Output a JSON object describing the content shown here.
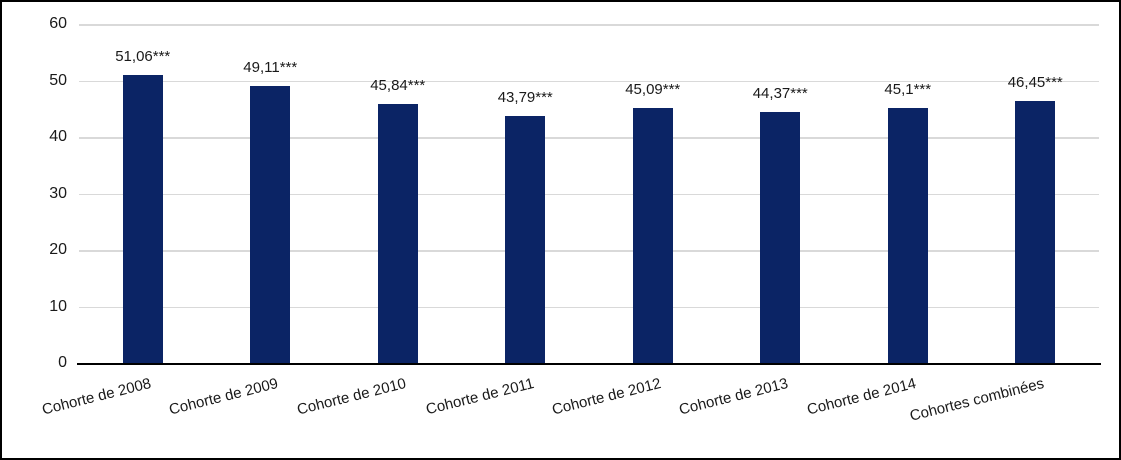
{
  "chart_data": {
    "type": "bar",
    "title": "",
    "xlabel": "",
    "ylabel": "",
    "categories": [
      "Cohorte de 2008",
      "Cohorte de 2009",
      "Cohorte de 2010",
      "Cohorte de 2011",
      "Cohorte de 2012",
      "Cohorte de 2013",
      "Cohorte de 2014",
      "Cohortes combinées"
    ],
    "values": [
      51.06,
      49.11,
      45.84,
      43.79,
      45.09,
      44.37,
      45.1,
      46.45
    ],
    "data_labels": [
      "51,06***",
      "49,11***",
      "45,84***",
      "43,79***",
      "45,09***",
      "44,37***",
      "45,1***",
      "46,45***"
    ],
    "ylim": [
      0,
      60
    ],
    "yticks": [
      0,
      10,
      20,
      30,
      40,
      50,
      60
    ],
    "ytick_labels": [
      "0",
      "10",
      "20",
      "30",
      "40",
      "50",
      "60"
    ],
    "grid": "horizontal",
    "legend": "none",
    "colors": {
      "bar": "#0B2465",
      "gridline": "#D9D9D9",
      "axis_line": "#000000",
      "text": "#1a1a1a",
      "border": "#000000",
      "background": "#ffffff"
    }
  }
}
